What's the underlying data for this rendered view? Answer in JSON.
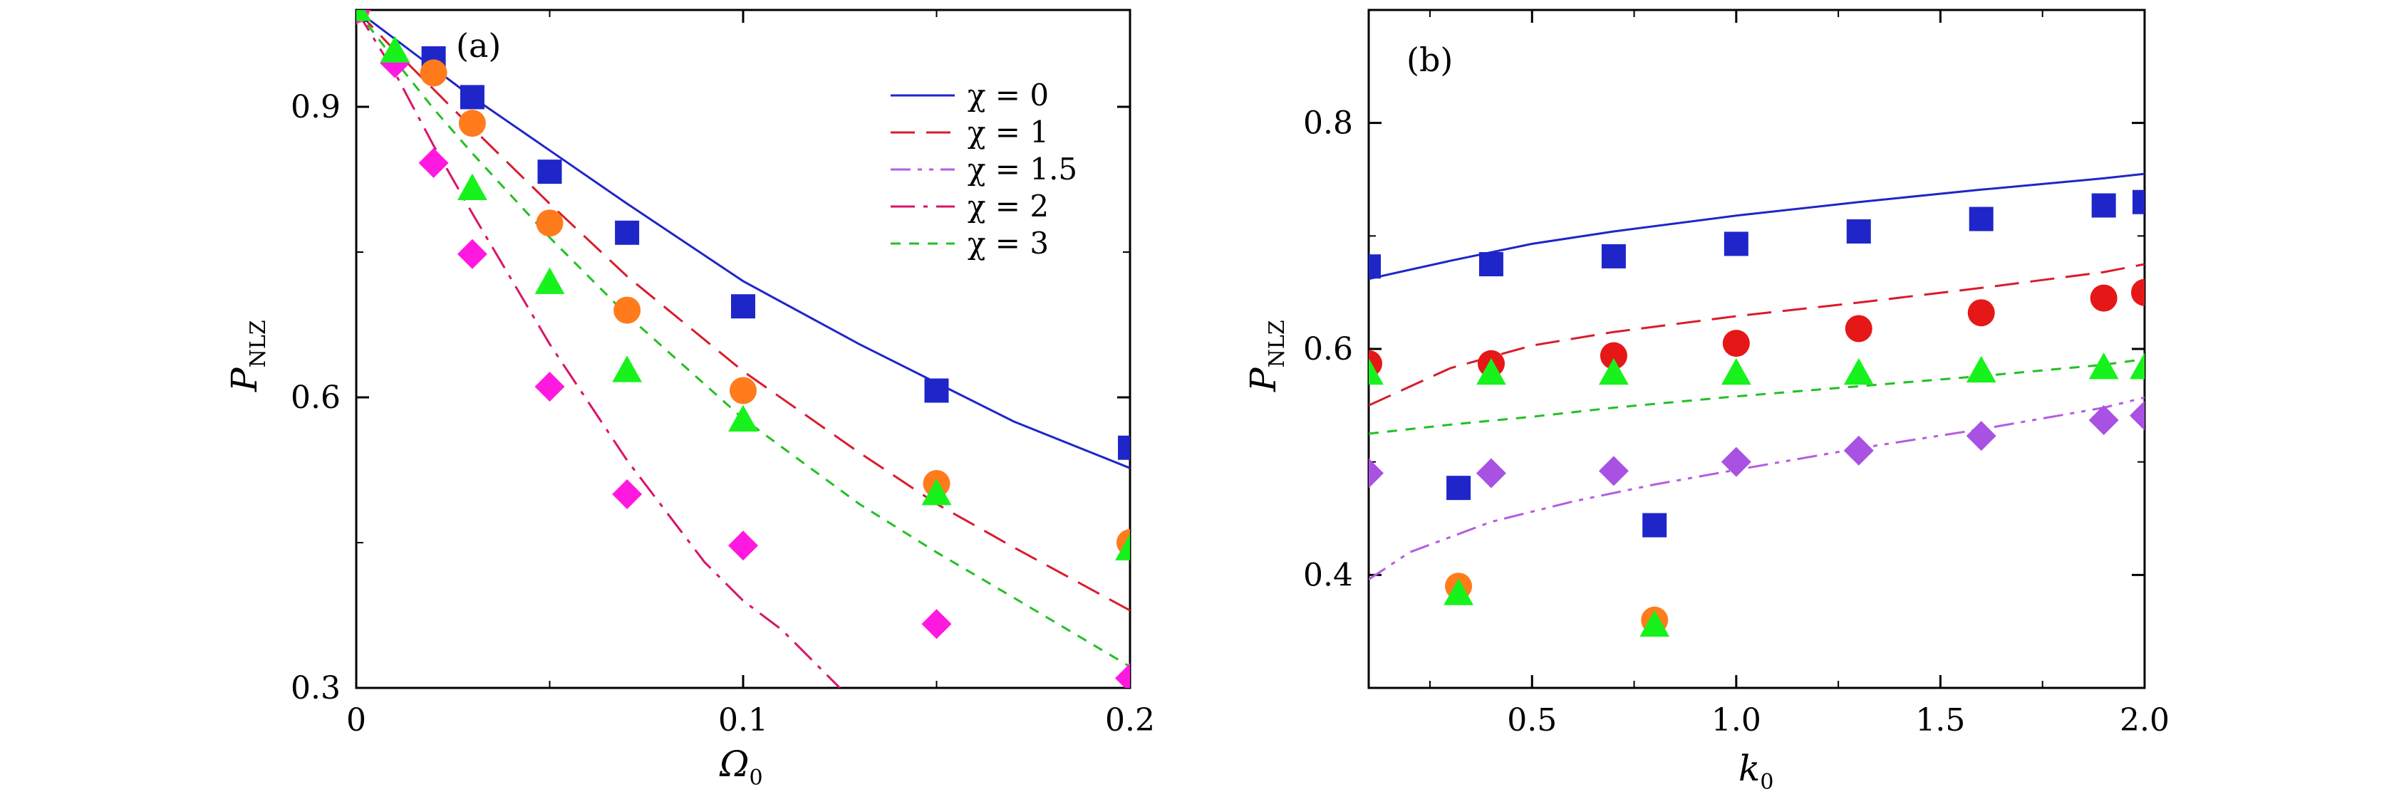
{
  "chart_data": [
    {
      "type": "line+scatter",
      "panel_label": "(a)",
      "xlabel": "Ω",
      "xlabel_sub": "0",
      "ylabel": "P",
      "ylabel_sub": "NLZ",
      "xlim": [
        0,
        0.2
      ],
      "ylim": [
        0.3,
        1.0
      ],
      "xticks": [
        0,
        0.1,
        0.2
      ],
      "xtick_labels": [
        "0",
        "0.1",
        "0.2"
      ],
      "yticks": [
        0.3,
        0.6,
        0.9
      ],
      "ytick_labels": [
        "0.3",
        "0.6",
        "0.9"
      ],
      "legend_position": "top-right",
      "legend": [
        {
          "label": "χ = 0",
          "color": "#1f26c9",
          "dash": "solid"
        },
        {
          "label": "χ = 1",
          "color": "#d81c2c",
          "dash": "long-dash"
        },
        {
          "label": "χ = 1.5",
          "color": "#b35de0",
          "dash": "dash-dot-dot"
        },
        {
          "label": "χ = 2",
          "color": "#d8146a",
          "dash": "dash-dot"
        },
        {
          "label": "χ = 3",
          "color": "#22c022",
          "dash": "short-dash"
        }
      ],
      "lines": [
        {
          "name": "χ = 0",
          "color": "#1f26c9",
          "dash": "solid",
          "x": [
            0,
            0.01,
            0.02,
            0.03,
            0.05,
            0.07,
            0.1,
            0.13,
            0.15,
            0.17,
            0.2
          ],
          "y": [
            1.0,
            0.97,
            0.94,
            0.91,
            0.855,
            0.8,
            0.72,
            0.655,
            0.615,
            0.575,
            0.527
          ]
        },
        {
          "name": "χ = 1",
          "color": "#d81c2c",
          "dash": "long-dash",
          "x": [
            0,
            0.01,
            0.02,
            0.03,
            0.05,
            0.07,
            0.1,
            0.13,
            0.15,
            0.17,
            0.2
          ],
          "y": [
            1.0,
            0.958,
            0.918,
            0.878,
            0.8,
            0.725,
            0.627,
            0.543,
            0.49,
            0.445,
            0.38
          ]
        },
        {
          "name": "χ = 2",
          "color": "#d8146a",
          "dash": "dash-dot",
          "x": [
            0,
            0.01,
            0.02,
            0.03,
            0.05,
            0.07,
            0.09,
            0.1,
            0.11,
            0.125
          ],
          "y": [
            1.0,
            0.935,
            0.86,
            0.79,
            0.655,
            0.535,
            0.43,
            0.39,
            0.36,
            0.3
          ]
        },
        {
          "name": "χ = 3",
          "color": "#22c022",
          "dash": "short-dash",
          "x": [
            0,
            0.01,
            0.02,
            0.03,
            0.05,
            0.07,
            0.1,
            0.13,
            0.15,
            0.17,
            0.2
          ],
          "y": [
            1.0,
            0.948,
            0.898,
            0.852,
            0.765,
            0.685,
            0.578,
            0.49,
            0.44,
            0.393,
            0.322
          ]
        }
      ],
      "markers": [
        {
          "name": "χ = 0",
          "shape": "square",
          "color": "#1f26c9",
          "x": [
            0,
            0.02,
            0.03,
            0.05,
            0.07,
            0.1,
            0.15,
            0.2
          ],
          "y": [
            1.0,
            0.95,
            0.91,
            0.833,
            0.77,
            0.694,
            0.607,
            0.548
          ]
        },
        {
          "name": "χ = 1",
          "shape": "circle",
          "color": "#ff7b1c",
          "x": [
            0,
            0.02,
            0.03,
            0.05,
            0.07,
            0.1,
            0.15,
            0.2
          ],
          "y": [
            1.0,
            0.935,
            0.883,
            0.78,
            0.69,
            0.607,
            0.511,
            0.45
          ]
        },
        {
          "name": "χ = 2",
          "shape": "diamond",
          "color": "#ff19e0",
          "x": [
            0,
            0.01,
            0.02,
            0.03,
            0.05,
            0.07,
            0.1,
            0.15,
            0.2
          ],
          "y": [
            1.0,
            0.945,
            0.842,
            0.748,
            0.611,
            0.5,
            0.447,
            0.366,
            0.31
          ]
        },
        {
          "name": "χ = 3",
          "shape": "triangle",
          "color": "#17f21c",
          "x": [
            0,
            0.01,
            0.03,
            0.05,
            0.07,
            0.1,
            0.15,
            0.2
          ],
          "y": [
            1.0,
            0.957,
            0.815,
            0.718,
            0.627,
            0.576,
            0.5,
            0.443
          ]
        }
      ]
    },
    {
      "type": "line+scatter",
      "panel_label": "(b)",
      "xlabel": "k",
      "xlabel_sub": "0",
      "ylabel": "P",
      "ylabel_sub": "NLZ",
      "xlim": [
        0.1,
        2.0
      ],
      "ylim": [
        0.3,
        0.9
      ],
      "xticks": [
        0.5,
        1.0,
        1.5,
        2.0
      ],
      "xtick_labels": [
        "0.5",
        "1.0",
        "1.5",
        "2.0"
      ],
      "yticks": [
        0.4,
        0.6,
        0.8
      ],
      "ytick_labels": [
        "0.4",
        "0.6",
        "0.8"
      ],
      "lines": [
        {
          "color": "#1f26c9",
          "dash": "solid",
          "x": [
            0.1,
            0.3,
            0.5,
            0.7,
            1.0,
            1.3,
            1.6,
            1.9,
            2.0
          ],
          "y": [
            0.662,
            0.678,
            0.693,
            0.704,
            0.718,
            0.73,
            0.741,
            0.751,
            0.755
          ]
        },
        {
          "color": "#d81c2c",
          "dash": "long-dash",
          "x": [
            0.1,
            0.3,
            0.5,
            0.7,
            1.0,
            1.3,
            1.6,
            1.9,
            2.0
          ],
          "y": [
            0.55,
            0.583,
            0.603,
            0.615,
            0.629,
            0.641,
            0.654,
            0.668,
            0.675
          ]
        },
        {
          "color": "#22c022",
          "dash": "short-dash",
          "x": [
            0.1,
            0.3,
            0.5,
            0.7,
            1.0,
            1.3,
            1.6,
            1.9,
            2.0
          ],
          "y": [
            0.525,
            0.533,
            0.54,
            0.548,
            0.558,
            0.567,
            0.576,
            0.586,
            0.591
          ]
        },
        {
          "color": "#b35de0",
          "dash": "dash-dot-dot",
          "x": [
            0.1,
            0.2,
            0.4,
            0.6,
            0.8,
            1.0,
            1.3,
            1.6,
            1.9,
            2.0
          ],
          "y": [
            0.396,
            0.42,
            0.447,
            0.465,
            0.48,
            0.493,
            0.512,
            0.529,
            0.548,
            0.557
          ]
        }
      ],
      "markers": [
        {
          "shape": "square",
          "color": "#1f26c9",
          "x": [
            0.1,
            0.32,
            0.4,
            0.7,
            0.8,
            1.0,
            1.3,
            1.6,
            1.9,
            2.0
          ],
          "y": [
            0.673,
            0.477,
            0.675,
            0.682,
            0.444,
            0.693,
            0.704,
            0.715,
            0.727,
            0.73
          ]
        },
        {
          "shape": "circle",
          "color": "#e61717",
          "x": [
            0.1,
            0.4,
            0.7,
            1.0,
            1.3,
            1.6,
            1.9,
            2.0
          ],
          "y": [
            0.587,
            0.587,
            0.594,
            0.605,
            0.618,
            0.632,
            0.645,
            0.65
          ]
        },
        {
          "shape": "circle",
          "color": "#ff7b1c",
          "x": [
            0.32,
            0.8
          ],
          "y": [
            0.39,
            0.36
          ]
        },
        {
          "shape": "triangle",
          "color": "#17f21c",
          "x": [
            0.1,
            0.32,
            0.4,
            0.7,
            0.8,
            1.0,
            1.3,
            1.6,
            1.9,
            2.0
          ],
          "y": [
            0.578,
            0.383,
            0.578,
            0.578,
            0.355,
            0.578,
            0.578,
            0.58,
            0.583,
            0.583
          ]
        },
        {
          "shape": "diamond",
          "color": "#a851e3",
          "x": [
            0.1,
            0.4,
            0.7,
            1.0,
            1.3,
            1.6,
            1.9,
            2.0
          ],
          "y": [
            0.49,
            0.49,
            0.492,
            0.5,
            0.51,
            0.523,
            0.537,
            0.541
          ]
        }
      ]
    }
  ]
}
